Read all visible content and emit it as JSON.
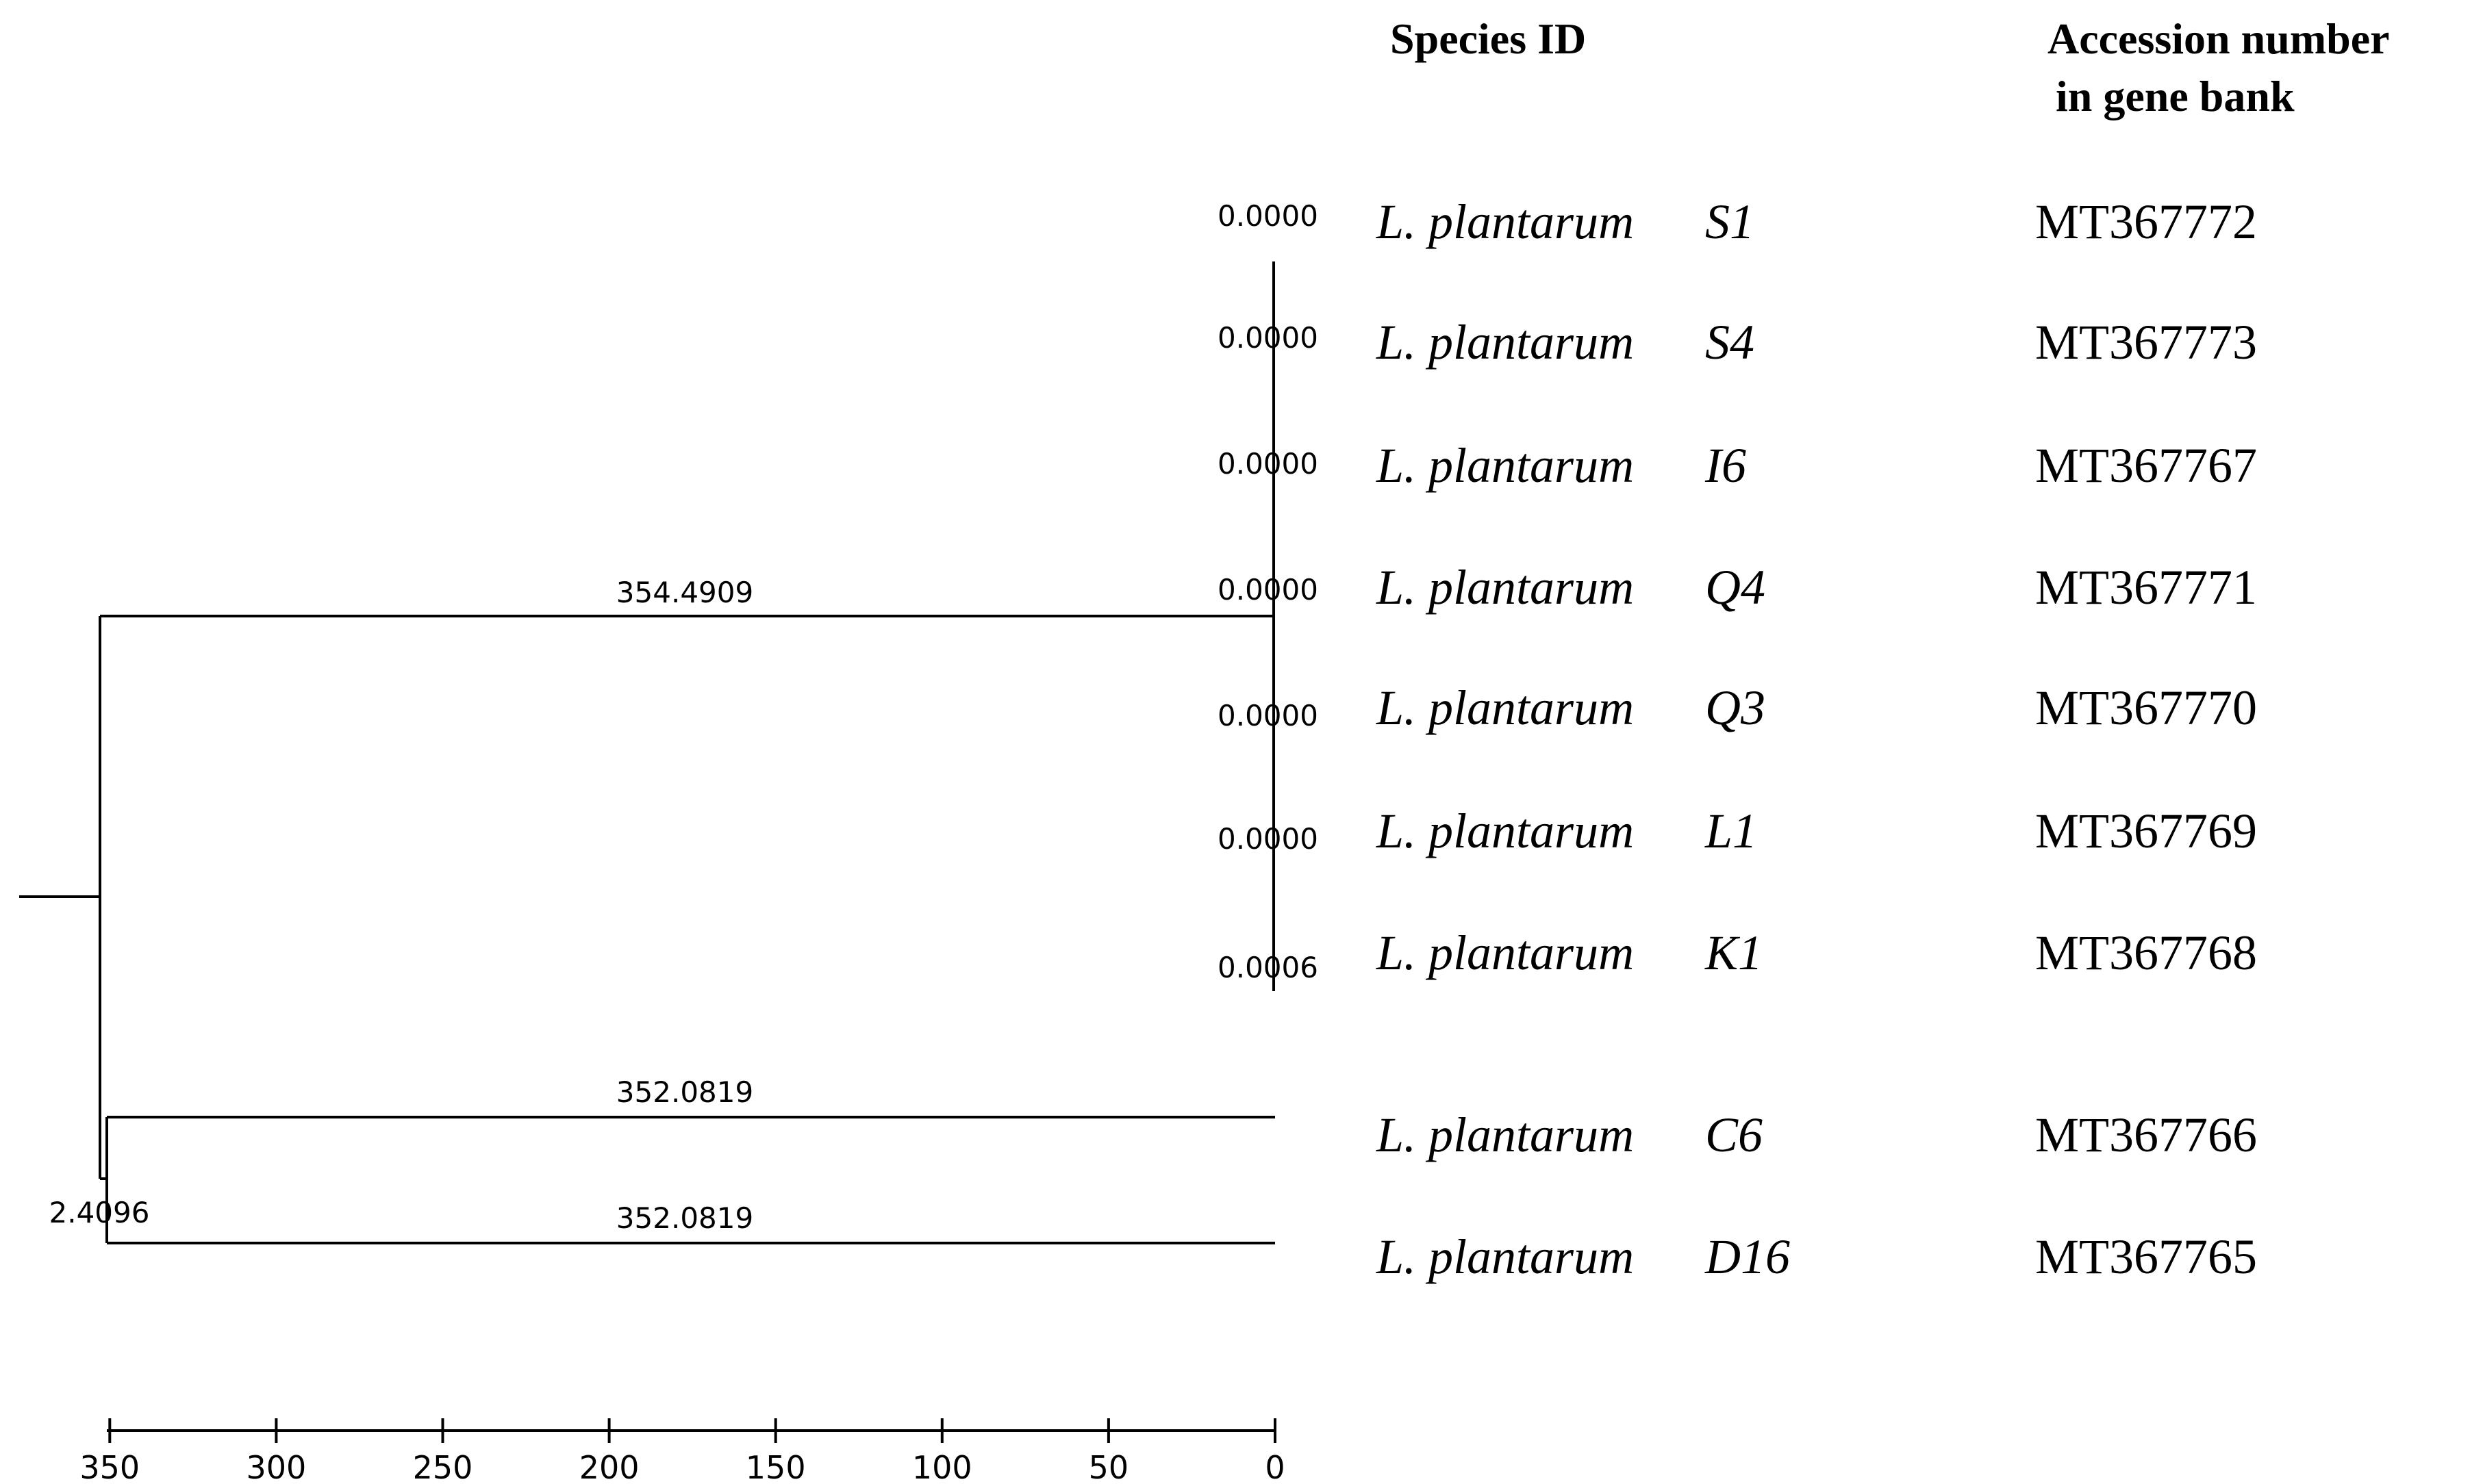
{
  "headers": {
    "species_id": "Species ID",
    "accession_line1": "Accession number",
    "accession_line2": "in gene bank"
  },
  "leaves": [
    {
      "genus": "L. plantarum",
      "strain": "S1",
      "accession": "MT367772",
      "branch_length": "0.0000"
    },
    {
      "genus": "L. plantarum",
      "strain": "S4",
      "accession": "MT367773",
      "branch_length": "0.0000"
    },
    {
      "genus": "L. plantarum",
      "strain": "I6",
      "accession": "MT367767",
      "branch_length": "0.0000"
    },
    {
      "genus": "L. plantarum",
      "strain": "Q4",
      "accession": "MT367771",
      "branch_length": "0.0000"
    },
    {
      "genus": "L. plantarum",
      "strain": "Q3",
      "accession": "MT367770",
      "branch_length": "0.0000"
    },
    {
      "genus": "L. plantarum",
      "strain": "L1",
      "accession": "MT367769",
      "branch_length": "0.0000"
    },
    {
      "genus": "L. plantarum",
      "strain": "K1",
      "accession": "MT367768",
      "branch_length": "0.0006"
    },
    {
      "genus": "L. plantarum",
      "strain": "C6",
      "accession": "MT367766",
      "branch_length": "352.0819"
    },
    {
      "genus": "L. plantarum",
      "strain": "D16",
      "accession": "MT367765",
      "branch_length": "352.0819"
    }
  ],
  "internal_branches": {
    "cluster_a": "354.4909",
    "cluster_b_node": "2.4096"
  },
  "axis": {
    "ticks": [
      "350",
      "300",
      "250",
      "200",
      "150",
      "100",
      "50",
      "0"
    ]
  }
}
